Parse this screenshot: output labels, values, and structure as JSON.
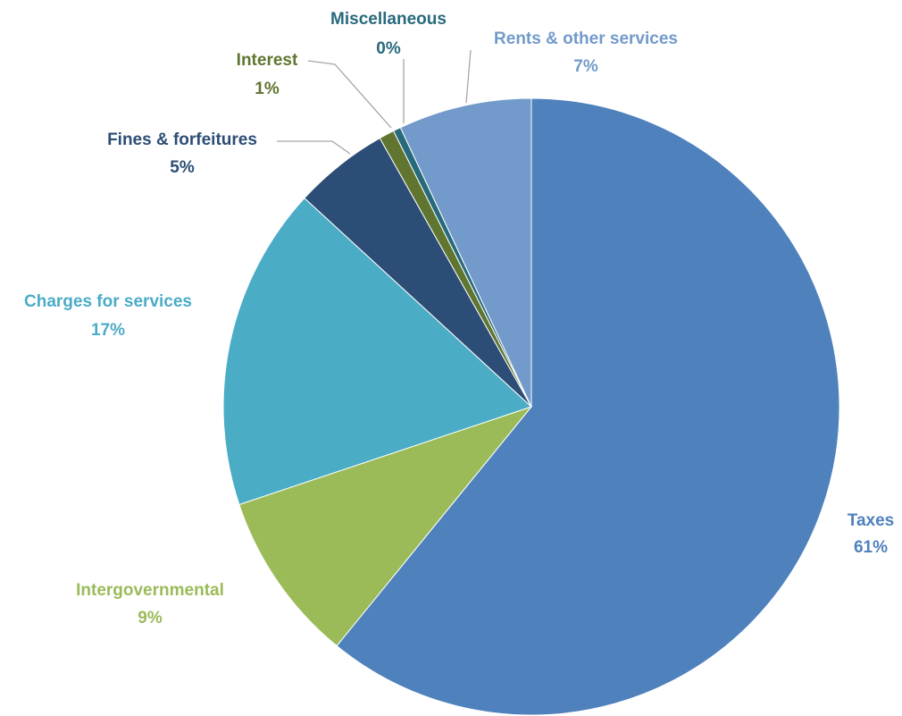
{
  "chart_data": {
    "type": "pie",
    "categories": [
      "Taxes",
      "Intergovernmental",
      "Charges for services",
      "Fines & forfeitures",
      "Interest",
      "Miscellaneous",
      "Rents & other services"
    ],
    "values": [
      61,
      9,
      17,
      5,
      0.8,
      0.4,
      7
    ],
    "value_labels": [
      "61%",
      "9%",
      "17%",
      "5%",
      "1%",
      "0%",
      "7%"
    ],
    "colors": [
      "#4f81bd",
      "#9bbb59",
      "#4bacc6",
      "#2c4d75",
      "#5f7530",
      "#276a7c",
      "#729aca"
    ]
  }
}
